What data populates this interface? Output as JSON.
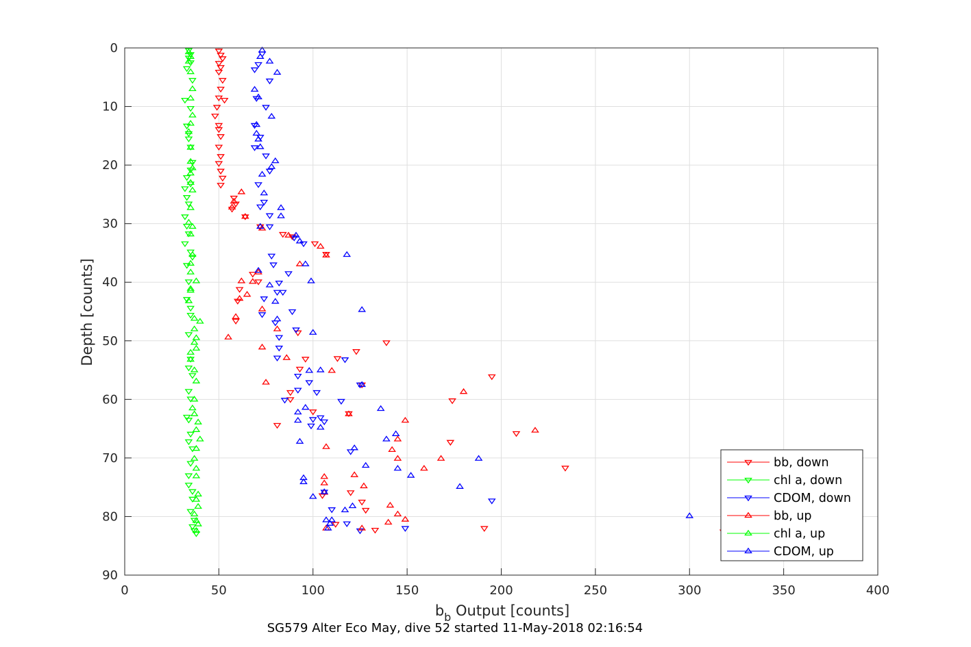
{
  "chart_data": {
    "type": "scatter",
    "xlabel_main": "b",
    "xlabel_sub": "b",
    "xlabel_rest": " Output [counts]",
    "ylabel": "Depth [counts]",
    "title": "SG579 Alter Eco May, dive 52 started 11-May-2018 02:16:54",
    "xlim": [
      0,
      400
    ],
    "ylim": [
      0,
      90
    ],
    "y_reversed": true,
    "grid": true,
    "legend_position": "bottom-right",
    "x_ticks": [
      0,
      50,
      100,
      150,
      200,
      250,
      300,
      350,
      400
    ],
    "y_ticks": [
      0,
      10,
      20,
      30,
      40,
      50,
      60,
      70,
      80,
      90
    ],
    "series": [
      {
        "name": "bb, down",
        "color": "#ff0000",
        "marker": "triangle-down",
        "points": [
          [
            50,
            0.5
          ],
          [
            51,
            1.2
          ],
          [
            52,
            1.8
          ],
          [
            50,
            2.6
          ],
          [
            51,
            3.3
          ],
          [
            50,
            4.1
          ],
          [
            52,
            5.5
          ],
          [
            51,
            7.0
          ],
          [
            50,
            8.5
          ],
          [
            53,
            8.9
          ],
          [
            49,
            10.1
          ],
          [
            48,
            11.6
          ],
          [
            50,
            13.2
          ],
          [
            50,
            13.9
          ],
          [
            51,
            15.1
          ],
          [
            50,
            16.9
          ],
          [
            51,
            18.5
          ],
          [
            50,
            19.7
          ],
          [
            51,
            21.0
          ],
          [
            52,
            22.2
          ],
          [
            51,
            23.4
          ],
          [
            58,
            25.6
          ],
          [
            59,
            26.6
          ],
          [
            57,
            27.5
          ],
          [
            64,
            28.8
          ],
          [
            72,
            30.5
          ],
          [
            84,
            31.8
          ],
          [
            89,
            32.2
          ],
          [
            101,
            33.4
          ],
          [
            107,
            35.2
          ],
          [
            68,
            38.6
          ],
          [
            71,
            39.9
          ],
          [
            61,
            41.2
          ],
          [
            60,
            43.2
          ],
          [
            59,
            46.6
          ],
          [
            92,
            48.6
          ],
          [
            113,
            53.0
          ],
          [
            96,
            53.1
          ],
          [
            123,
            51.8
          ],
          [
            139,
            50.3
          ],
          [
            93,
            54.8
          ],
          [
            195,
            56.1
          ],
          [
            126,
            57.5
          ],
          [
            88,
            58.8
          ],
          [
            88,
            60.0
          ],
          [
            174,
            60.2
          ],
          [
            119,
            62.4
          ],
          [
            100,
            62.1
          ],
          [
            81,
            64.4
          ],
          [
            208,
            65.8
          ],
          [
            173,
            67.3
          ],
          [
            105,
            76.4
          ],
          [
            120,
            75.9
          ],
          [
            126,
            77.5
          ],
          [
            128,
            78.9
          ],
          [
            234,
            71.7
          ],
          [
            191,
            82.0
          ],
          [
            112,
            81.3
          ],
          [
            133,
            82.3
          ],
          [
            318,
            82.6
          ]
        ]
      },
      {
        "name": "chl a, down",
        "color": "#00ff00",
        "marker": "triangle-down",
        "points": [
          [
            34,
            0.4
          ],
          [
            35,
            1.1
          ],
          [
            34,
            1.7
          ],
          [
            35,
            2.5
          ],
          [
            33,
            3.5
          ],
          [
            36,
            5.5
          ],
          [
            32,
            8.9
          ],
          [
            35,
            10.3
          ],
          [
            33,
            13.3
          ],
          [
            34,
            14.6
          ],
          [
            34,
            15.5
          ],
          [
            35,
            16.9
          ],
          [
            36,
            19.5
          ],
          [
            35,
            20.8
          ],
          [
            33,
            22.1
          ],
          [
            35,
            23.2
          ],
          [
            32,
            24.0
          ],
          [
            33,
            25.5
          ],
          [
            34,
            26.6
          ],
          [
            32,
            28.8
          ],
          [
            33,
            30.4
          ],
          [
            34,
            31.7
          ],
          [
            32,
            33.4
          ],
          [
            35,
            34.8
          ],
          [
            36,
            35.7
          ],
          [
            33,
            37.1
          ],
          [
            34,
            39.9
          ],
          [
            33,
            42.9
          ],
          [
            35,
            44.4
          ],
          [
            35,
            45.6
          ],
          [
            34,
            48.9
          ],
          [
            35,
            53.1
          ],
          [
            34,
            54.6
          ],
          [
            36,
            55.9
          ],
          [
            34,
            58.6
          ],
          [
            35,
            59.9
          ],
          [
            33,
            63.0
          ],
          [
            34,
            63.5
          ],
          [
            35,
            65.9
          ],
          [
            34,
            67.2
          ],
          [
            36,
            68.4
          ],
          [
            35,
            70.9
          ],
          [
            34,
            73.0
          ],
          [
            34,
            74.6
          ],
          [
            36,
            75.7
          ],
          [
            36,
            77.0
          ],
          [
            35,
            79.1
          ],
          [
            37,
            80.6
          ],
          [
            36,
            81.7
          ],
          [
            37,
            82.4
          ],
          [
            38,
            82.9
          ]
        ]
      },
      {
        "name": "CDOM, down",
        "color": "#0000ff",
        "marker": "triangle-down",
        "points": [
          [
            73,
            1.0
          ],
          [
            71,
            2.8
          ],
          [
            69,
            3.7
          ],
          [
            77,
            5.6
          ],
          [
            70,
            8.6
          ],
          [
            75,
            10.1
          ],
          [
            69,
            13.2
          ],
          [
            72,
            15.2
          ],
          [
            69,
            17.0
          ],
          [
            75,
            18.4
          ],
          [
            77,
            21.0
          ],
          [
            71,
            23.3
          ],
          [
            74,
            26.3
          ],
          [
            72,
            27.1
          ],
          [
            77,
            28.6
          ],
          [
            77,
            30.5
          ],
          [
            90,
            32.4
          ],
          [
            95,
            33.4
          ],
          [
            78,
            35.5
          ],
          [
            79,
            37.0
          ],
          [
            87,
            38.5
          ],
          [
            82,
            40.1
          ],
          [
            81,
            41.7
          ],
          [
            84,
            41.7
          ],
          [
            74,
            42.8
          ],
          [
            89,
            45.0
          ],
          [
            73,
            45.5
          ],
          [
            80,
            46.9
          ],
          [
            91,
            48.1
          ],
          [
            82,
            49.4
          ],
          [
            82,
            51.2
          ],
          [
            81,
            52.9
          ],
          [
            117,
            53.2
          ],
          [
            92,
            56.0
          ],
          [
            125,
            57.5
          ],
          [
            98,
            57.1
          ],
          [
            85,
            60.1
          ],
          [
            92,
            58.4
          ],
          [
            102,
            58.8
          ],
          [
            115,
            60.3
          ],
          [
            100,
            63.4
          ],
          [
            104,
            63.1
          ],
          [
            106,
            63.8
          ],
          [
            99,
            64.5
          ],
          [
            106,
            75.8
          ],
          [
            120,
            68.9
          ],
          [
            110,
            78.8
          ],
          [
            118,
            81.2
          ],
          [
            125,
            82.4
          ],
          [
            149,
            82.0
          ],
          [
            195,
            77.3
          ]
        ]
      },
      {
        "name": "bb, up",
        "color": "#ff0000",
        "marker": "triangle-up",
        "points": [
          [
            62,
            24.6
          ],
          [
            58,
            26.2
          ],
          [
            57,
            27.2
          ],
          [
            64,
            28.8
          ],
          [
            73,
            30.8
          ],
          [
            87,
            32.0
          ],
          [
            104,
            33.9
          ],
          [
            107,
            35.4
          ],
          [
            93,
            36.9
          ],
          [
            71,
            38.3
          ],
          [
            62,
            39.8
          ],
          [
            68,
            39.9
          ],
          [
            65,
            42.1
          ],
          [
            61,
            42.8
          ],
          [
            73,
            44.6
          ],
          [
            59,
            45.9
          ],
          [
            55,
            49.4
          ],
          [
            81,
            48.0
          ],
          [
            73,
            51.1
          ],
          [
            86,
            52.9
          ],
          [
            110,
            55.1
          ],
          [
            75,
            57.1
          ],
          [
            180,
            58.7
          ],
          [
            119,
            62.5
          ],
          [
            149,
            63.6
          ],
          [
            218,
            65.3
          ],
          [
            145,
            66.8
          ],
          [
            107,
            68.1
          ],
          [
            142,
            68.6
          ],
          [
            145,
            70.1
          ],
          [
            168,
            70.1
          ],
          [
            159,
            71.8
          ],
          [
            122,
            72.9
          ],
          [
            106,
            73.2
          ],
          [
            106,
            74.3
          ],
          [
            127,
            74.8
          ],
          [
            106,
            75.9
          ],
          [
            141,
            78.1
          ],
          [
            145,
            79.6
          ],
          [
            149,
            80.5
          ],
          [
            140,
            81.0
          ],
          [
            107,
            82.0
          ],
          [
            126,
            82.0
          ]
        ]
      },
      {
        "name": "chl a, up",
        "color": "#00ff00",
        "marker": "triangle-up",
        "points": [
          [
            34,
            0.7
          ],
          [
            35,
            1.5
          ],
          [
            34,
            2.3
          ],
          [
            35,
            4.1
          ],
          [
            36,
            7.0
          ],
          [
            35,
            8.6
          ],
          [
            36,
            11.5
          ],
          [
            35,
            12.9
          ],
          [
            34,
            14.3
          ],
          [
            35,
            17.0
          ],
          [
            35,
            19.4
          ],
          [
            36,
            20.5
          ],
          [
            35,
            21.4
          ],
          [
            35,
            23.0
          ],
          [
            36,
            24.3
          ],
          [
            35,
            27.3
          ],
          [
            34,
            29.8
          ],
          [
            36,
            30.5
          ],
          [
            35,
            31.8
          ],
          [
            36,
            35.3
          ],
          [
            35,
            36.8
          ],
          [
            35,
            38.3
          ],
          [
            38,
            39.8
          ],
          [
            35,
            41.1
          ],
          [
            35,
            41.4
          ],
          [
            34,
            43.2
          ],
          [
            37,
            46.2
          ],
          [
            40,
            46.7
          ],
          [
            37,
            48.0
          ],
          [
            38,
            49.5
          ],
          [
            37,
            50.3
          ],
          [
            38,
            51.3
          ],
          [
            35,
            52.0
          ],
          [
            35,
            53.2
          ],
          [
            37,
            55.0
          ],
          [
            38,
            56.9
          ],
          [
            37,
            60.0
          ],
          [
            36,
            61.5
          ],
          [
            37,
            62.5
          ],
          [
            39,
            63.9
          ],
          [
            38,
            65.2
          ],
          [
            40,
            66.8
          ],
          [
            38,
            68.4
          ],
          [
            37,
            70.1
          ],
          [
            38,
            71.8
          ],
          [
            38,
            73.1
          ],
          [
            39,
            76.2
          ],
          [
            38,
            77.1
          ],
          [
            39,
            78.3
          ],
          [
            37,
            79.6
          ],
          [
            38,
            80.7
          ],
          [
            39,
            81.3
          ],
          [
            38,
            82.4
          ]
        ]
      },
      {
        "name": "CDOM, up",
        "color": "#0000ff",
        "marker": "triangle-up",
        "points": [
          [
            73,
            0.4
          ],
          [
            72,
            1.5
          ],
          [
            77,
            2.3
          ],
          [
            81,
            4.2
          ],
          [
            69,
            7.1
          ],
          [
            71,
            8.4
          ],
          [
            78,
            11.7
          ],
          [
            70,
            13.1
          ],
          [
            70,
            14.6
          ],
          [
            71,
            15.6
          ],
          [
            72,
            16.9
          ],
          [
            80,
            19.3
          ],
          [
            78,
            20.3
          ],
          [
            73,
            21.6
          ],
          [
            74,
            24.8
          ],
          [
            83,
            27.3
          ],
          [
            83,
            28.7
          ],
          [
            72,
            30.5
          ],
          [
            91,
            32.0
          ],
          [
            93,
            33.0
          ],
          [
            118,
            35.3
          ],
          [
            96,
            36.9
          ],
          [
            71,
            38.0
          ],
          [
            99,
            39.8
          ],
          [
            77,
            40.5
          ],
          [
            80,
            43.3
          ],
          [
            126,
            44.7
          ],
          [
            81,
            46.3
          ],
          [
            100,
            48.6
          ],
          [
            126,
            57.5
          ],
          [
            104,
            55.0
          ],
          [
            98,
            55.1
          ],
          [
            136,
            61.6
          ],
          [
            96,
            61.4
          ],
          [
            92,
            62.2
          ],
          [
            92,
            63.6
          ],
          [
            93,
            67.2
          ],
          [
            104,
            64.8
          ],
          [
            122,
            68.3
          ],
          [
            139,
            66.8
          ],
          [
            144,
            65.9
          ],
          [
            128,
            71.3
          ],
          [
            145,
            71.8
          ],
          [
            152,
            73.0
          ],
          [
            178,
            74.9
          ],
          [
            188,
            70.1
          ],
          [
            95,
            73.4
          ],
          [
            95,
            74.1
          ],
          [
            100,
            76.6
          ],
          [
            106,
            75.8
          ],
          [
            121,
            78.2
          ],
          [
            117,
            78.9
          ],
          [
            107,
            80.6
          ],
          [
            110,
            80.6
          ],
          [
            109,
            81.2
          ],
          [
            108,
            82.0
          ],
          [
            300,
            79.9
          ]
        ]
      }
    ]
  }
}
